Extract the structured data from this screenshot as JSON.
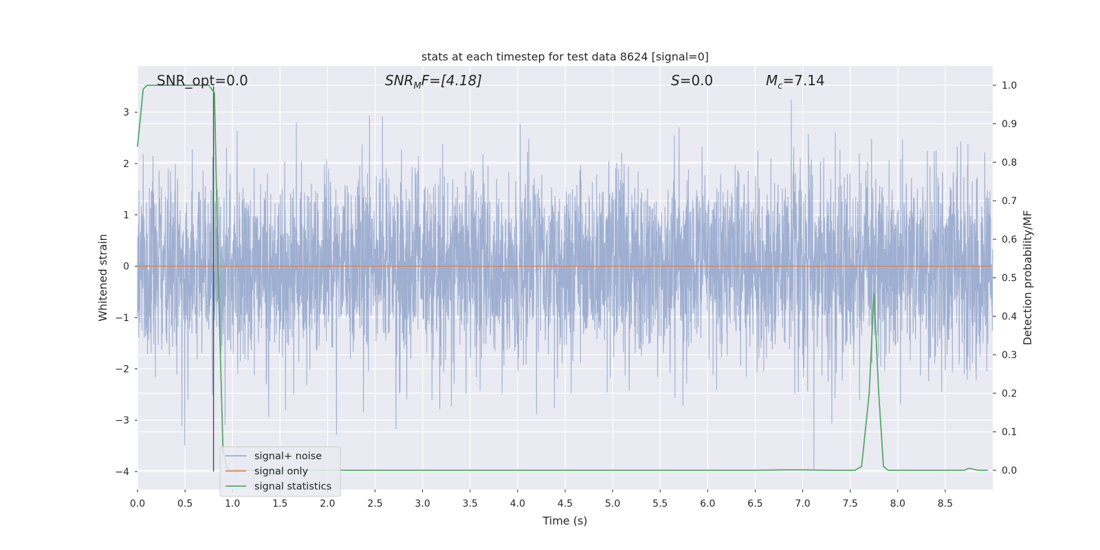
{
  "chart_data": {
    "type": "line",
    "title": "stats at each timestep for test data 8624 [signal=0]",
    "xlabel": "Time (s)",
    "ylabel_left": "Whitened strain",
    "ylabel_right": "Detection probability/MF",
    "xlim": [
      0.0,
      9.0
    ],
    "ylim_left": [
      -4.35,
      3.9
    ],
    "ylim_right": [
      -0.05,
      1.05
    ],
    "xticks": [
      "0.0",
      "0.5",
      "1.0",
      "1.5",
      "2.0",
      "2.5",
      "3.0",
      "3.5",
      "4.0",
      "4.5",
      "5.0",
      "5.5",
      "6.0",
      "6.5",
      "7.0",
      "7.5",
      "8.0",
      "8.5"
    ],
    "yticks_left": [
      "−4",
      "−3",
      "−2",
      "−1",
      "0",
      "1",
      "2",
      "3"
    ],
    "yticks_right": [
      "0.0",
      "0.1",
      "0.2",
      "0.3",
      "0.4",
      "0.5",
      "0.6",
      "0.7",
      "0.8",
      "0.9",
      "1.0"
    ],
    "grid": true,
    "legend_position": "lower-left",
    "annotations": {
      "snr_opt": "SNR_opt=0.0",
      "snr_mf_base": "SNR",
      "snr_mf_sub": "M",
      "snr_mf_rest": "F=[4.18]",
      "s_italic": "S",
      "s_value": "=0.0",
      "mc_base": "M",
      "mc_sub": "c",
      "mc_value": "=7.14"
    },
    "vline_x": 0.8,
    "vline_range": [
      -4.0,
      3.5
    ],
    "series": [
      {
        "name": "signal+ noise",
        "color": "#9aaccf",
        "axis": "left",
        "noise_sigma": 0.93,
        "x_range": [
          0.0,
          9.0
        ]
      },
      {
        "name": "signal only",
        "color": "#dd8452",
        "axis": "left",
        "x": [
          0.0,
          9.0
        ],
        "y": [
          0.0,
          0.0
        ]
      },
      {
        "name": "signal statistics",
        "color": "#55a868",
        "axis": "right",
        "x": [
          0.0,
          0.06,
          0.1,
          0.2,
          0.4,
          0.6,
          0.75,
          0.81,
          0.85,
          0.9,
          0.95,
          1.2,
          2.0,
          3.0,
          4.0,
          5.0,
          6.0,
          6.5,
          6.8,
          7.0,
          7.3,
          7.55,
          7.62,
          7.7,
          7.75,
          7.8,
          7.85,
          7.9,
          8.2,
          8.5,
          8.7,
          8.75,
          8.85,
          8.95
        ],
        "y": [
          0.84,
          0.99,
          1.0,
          1.0,
          1.0,
          1.0,
          1.0,
          0.98,
          0.5,
          0.05,
          0.0,
          0.0,
          0.0,
          0.0,
          0.0,
          0.0,
          0.0,
          0.0,
          0.001,
          0.001,
          0.0,
          0.0,
          0.01,
          0.2,
          0.46,
          0.2,
          0.01,
          0.0,
          0.0,
          0.0,
          0.0,
          0.005,
          0.0,
          0.0
        ]
      }
    ]
  }
}
